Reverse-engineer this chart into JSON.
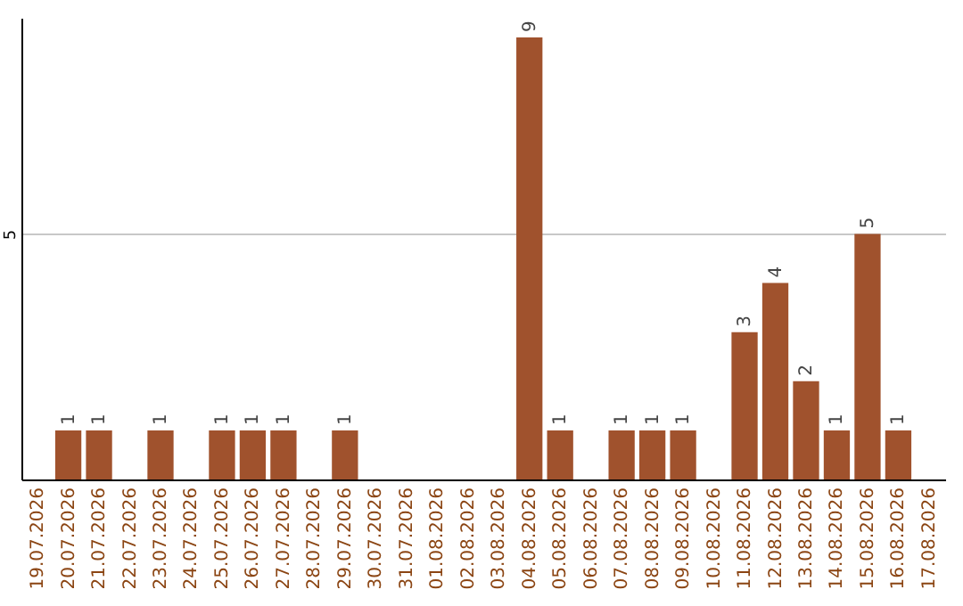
{
  "chart_data": {
    "type": "bar",
    "categories": [
      "19.07.2026",
      "20.07.2026",
      "21.07.2026",
      "22.07.2026",
      "23.07.2026",
      "24.07.2026",
      "25.07.2026",
      "26.07.2026",
      "27.07.2026",
      "28.07.2026",
      "29.07.2026",
      "30.07.2026",
      "31.07.2026",
      "01.08.2026",
      "02.08.2026",
      "03.08.2026",
      "04.08.2026",
      "05.08.2026",
      "06.08.2026",
      "07.08.2026",
      "08.08.2026",
      "09.08.2026",
      "10.08.2026",
      "11.08.2026",
      "12.08.2026",
      "13.08.2026",
      "14.08.2026",
      "15.08.2026",
      "16.08.2026",
      "17.08.2026"
    ],
    "values": [
      0,
      1,
      1,
      0,
      1,
      0,
      1,
      1,
      1,
      0,
      1,
      0,
      0,
      0,
      0,
      0,
      9,
      1,
      0,
      1,
      1,
      1,
      0,
      3,
      4,
      2,
      1,
      5,
      1,
      0
    ],
    "value_labels": [
      null,
      "1",
      "1",
      null,
      "1",
      null,
      "1",
      "1",
      "1",
      null,
      "1",
      null,
      null,
      null,
      null,
      null,
      "9",
      "1",
      null,
      "1",
      "1",
      "1",
      null,
      "3",
      "4",
      "2",
      "1",
      "5",
      "1",
      null
    ],
    "color": "#a0522d",
    "ylim": [
      0,
      9.4
    ],
    "yticks": [
      5
    ],
    "grid": "y"
  }
}
